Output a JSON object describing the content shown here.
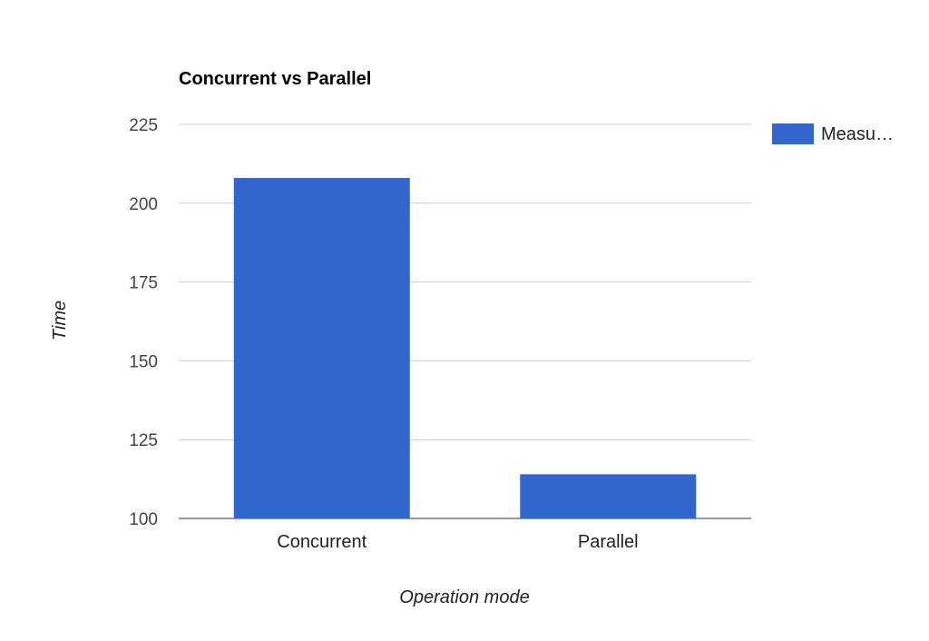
{
  "chart_data": {
    "type": "bar",
    "title": "Concurrent vs Parallel",
    "xlabel": "Operation mode",
    "ylabel": "Time",
    "categories": [
      "Concurrent",
      "Parallel"
    ],
    "series": [
      {
        "name": "Measu…",
        "values": [
          208,
          114
        ]
      }
    ],
    "ylim": [
      100,
      225
    ],
    "yticks": [
      100,
      125,
      150,
      175,
      200,
      225
    ],
    "grid": true,
    "legend_position": "right",
    "bar_color": "#3366cc"
  }
}
